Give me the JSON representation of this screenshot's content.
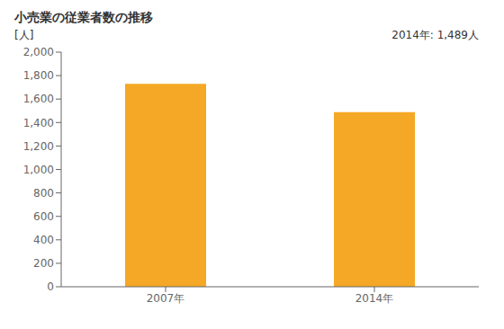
{
  "chart_data": {
    "type": "bar",
    "title": "小売業の従業者数の推移",
    "ylabel": "[人]",
    "annotation": "2014年: 1,489人",
    "categories": [
      "2007年",
      "2014年"
    ],
    "values": [
      1730,
      1489
    ],
    "color": "#F5A825",
    "ylim": [
      0,
      2000
    ],
    "yticks": [
      0,
      200,
      400,
      600,
      800,
      {
        "value": 1000,
        "label": "1,000"
      },
      {
        "value": 1200,
        "label": "1,200"
      },
      {
        "value": 1400,
        "label": "1,400"
      },
      {
        "value": 1600,
        "label": "1,600"
      },
      {
        "value": 1800,
        "label": "1,800"
      },
      {
        "value": 2000,
        "label": "2,000"
      }
    ],
    "grid": false
  }
}
